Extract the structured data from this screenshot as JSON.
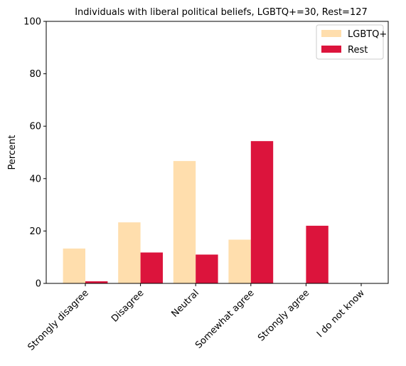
{
  "chart_data": {
    "type": "bar",
    "title": "Individuals with liberal political beliefs, LGBTQ+=30, Rest=127",
    "xlabel": "",
    "ylabel": "Percent",
    "ylim": [
      0,
      100
    ],
    "yticks": [
      0,
      20,
      40,
      60,
      80,
      100
    ],
    "categories": [
      "Strongly disagree",
      "Disagree",
      "Neutral",
      "Somewhat agree",
      "Strongly agree",
      "I do not know"
    ],
    "series": [
      {
        "name": "LGBTQ+",
        "color": "#FFDEAD",
        "values": [
          13.3,
          23.3,
          46.7,
          16.7,
          0,
          0
        ]
      },
      {
        "name": "Rest",
        "color": "#DC143C",
        "values": [
          0.8,
          11.8,
          11.0,
          54.3,
          22.0,
          0
        ]
      }
    ],
    "legend": "top-right",
    "grid": false
  }
}
